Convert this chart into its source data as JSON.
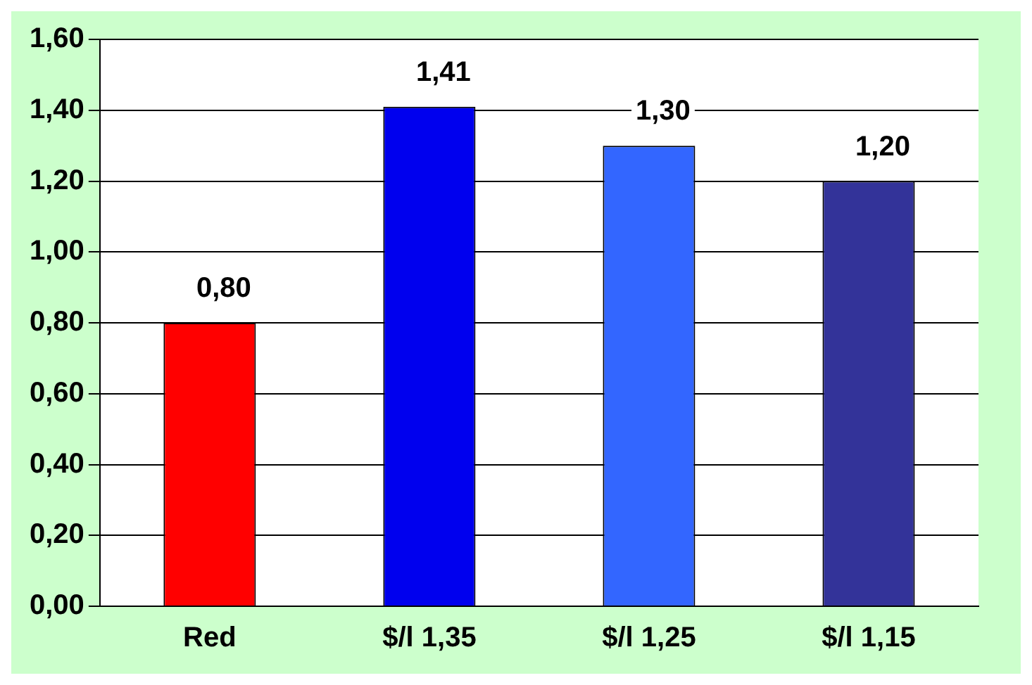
{
  "chart_data": {
    "type": "bar",
    "categories": [
      "Red",
      "$/l 1,35",
      "$/l 1,25",
      "$/l 1,15"
    ],
    "values": [
      0.8,
      1.41,
      1.3,
      1.2
    ],
    "colors": [
      "#ff0000",
      "#0000ee",
      "#3366ff",
      "#333399"
    ],
    "value_labels": [
      "0,80",
      "1,41",
      "1,30",
      "1,20"
    ],
    "ylim": [
      0,
      1.6
    ],
    "yticks": [
      {
        "value": 0,
        "label": "0,00"
      },
      {
        "value": 0.2,
        "label": "0,20"
      },
      {
        "value": 0.4,
        "label": "0,40"
      },
      {
        "value": 0.6,
        "label": "0,60"
      },
      {
        "value": 0.8,
        "label": "0,80"
      },
      {
        "value": 1,
        "label": "1,00"
      },
      {
        "value": 1.2,
        "label": "1,20"
      },
      {
        "value": 1.4,
        "label": "1,40"
      },
      {
        "value": 1.6,
        "label": "1,60"
      }
    ],
    "grid": "y",
    "legend": false
  }
}
